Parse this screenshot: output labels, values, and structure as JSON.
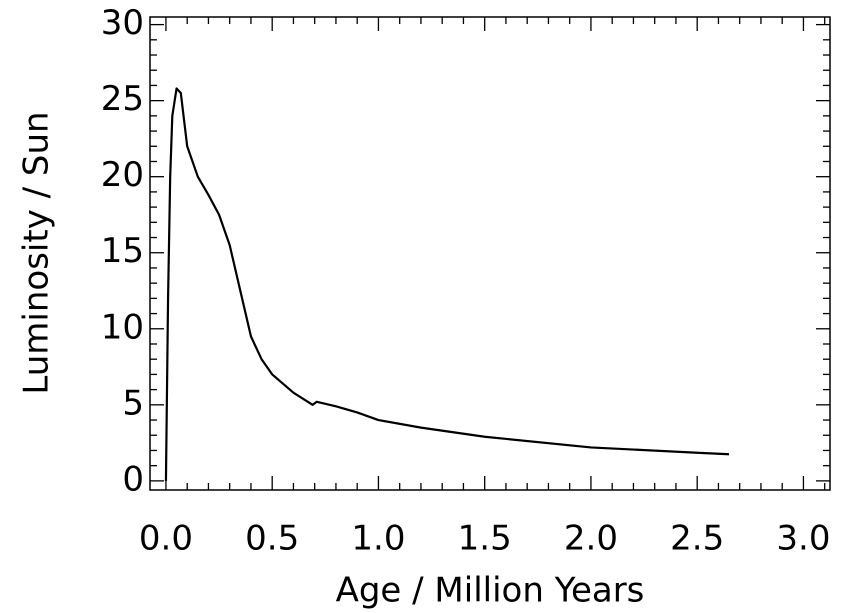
{
  "chart_data": {
    "type": "line",
    "xlabel": "Age / Million Years",
    "ylabel": "Luminosity / Sun",
    "x": [
      0.0,
      0.01,
      0.02,
      0.03,
      0.05,
      0.07,
      0.1,
      0.15,
      0.2,
      0.25,
      0.3,
      0.35,
      0.4,
      0.45,
      0.5,
      0.6,
      0.69,
      0.71,
      0.8,
      0.9,
      1.0,
      1.2,
      1.5,
      2.0,
      2.5,
      2.65
    ],
    "series": [
      {
        "name": "Luminosity",
        "color": "#000000",
        "values": [
          0,
          12,
          20,
          24,
          25.8,
          25.5,
          22,
          20,
          18.8,
          17.5,
          15.5,
          12.5,
          9.5,
          8,
          7,
          5.8,
          5.0,
          5.2,
          4.9,
          4.5,
          4.0,
          3.5,
          2.9,
          2.2,
          1.85,
          1.75
        ]
      }
    ],
    "xlim": [
      -0.075,
      3.125
    ],
    "ylim": [
      -0.6,
      30.5
    ],
    "xticks": [
      {
        "value": 0,
        "label": "0.0"
      },
      0.5,
      {
        "value": 1,
        "label": "1.0"
      },
      1.5,
      {
        "value": 2,
        "label": "2.0"
      },
      2.5,
      {
        "value": 3,
        "label": "3.0"
      }
    ],
    "yticks": [
      0,
      5,
      10,
      15,
      20,
      25,
      30
    ],
    "xminor_ticks": [
      0.1,
      0.2,
      0.3,
      0.4,
      0.6,
      0.7,
      0.8,
      0.9,
      1.1,
      1.2,
      1.3,
      1.4,
      1.6,
      1.7,
      1.8,
      1.9,
      2.1,
      2.2,
      2.3,
      2.4,
      2.6,
      2.7,
      2.8,
      2.9,
      3.1
    ],
    "yminor_ticks": [
      1,
      2,
      3,
      4,
      6,
      7,
      8,
      9,
      11,
      12,
      13,
      14,
      16,
      17,
      18,
      19,
      21,
      22,
      23,
      24,
      26,
      27,
      28,
      29
    ]
  }
}
